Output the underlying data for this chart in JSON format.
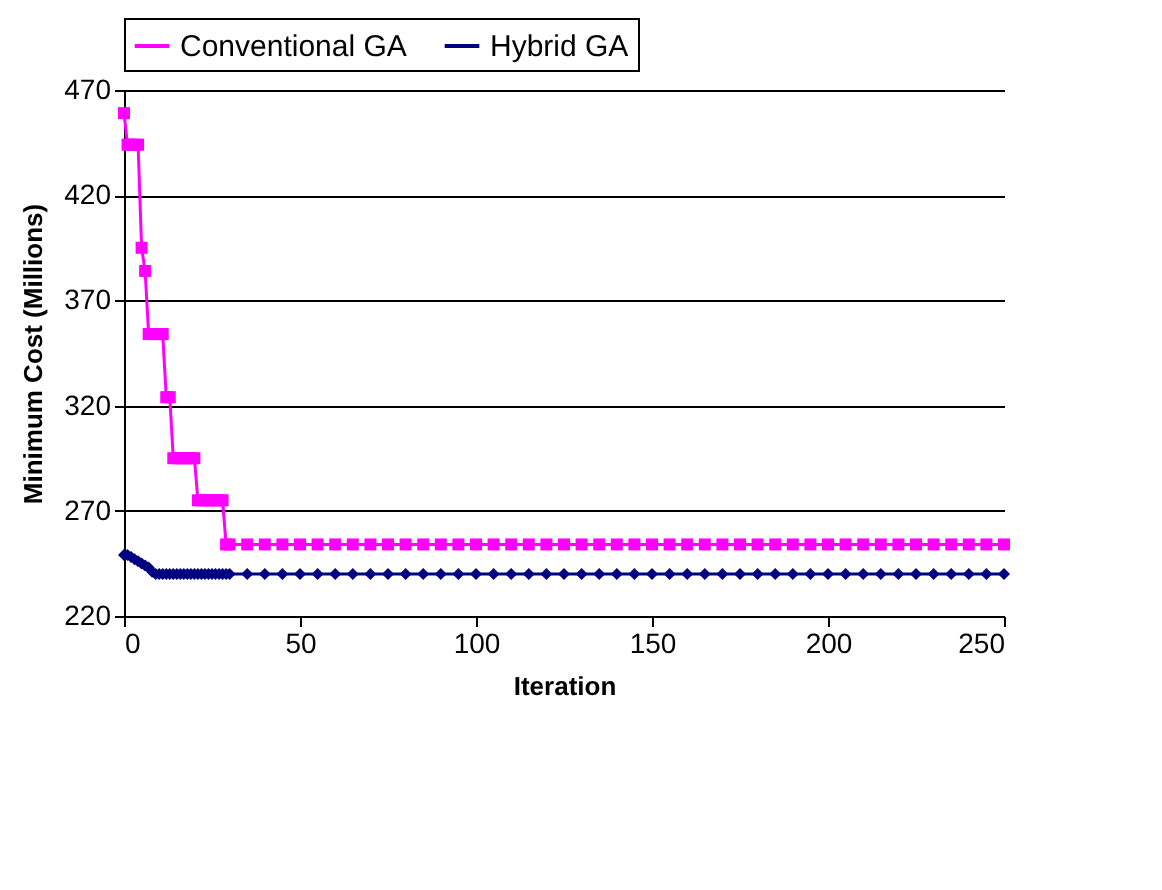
{
  "chart_data": {
    "type": "line",
    "xlabel": "Iteration",
    "ylabel": "Minimum Cost (Millions)",
    "x": [
      0,
      1,
      2,
      3,
      4,
      5,
      6,
      7,
      8,
      9,
      10,
      11,
      12,
      13,
      14,
      15,
      16,
      17,
      18,
      19,
      20,
      21,
      22,
      23,
      24,
      25,
      26,
      27,
      28,
      29,
      30,
      35,
      40,
      45,
      50,
      55,
      60,
      65,
      70,
      75,
      80,
      85,
      90,
      95,
      100,
      105,
      110,
      115,
      120,
      125,
      130,
      135,
      140,
      145,
      150,
      155,
      160,
      165,
      170,
      175,
      180,
      185,
      190,
      195,
      200,
      205,
      210,
      215,
      220,
      225,
      230,
      235,
      240,
      245,
      250
    ],
    "series": [
      {
        "name": "Conventional GA",
        "color": "#ff00ff",
        "marker": "square",
        "values": [
          459,
          444,
          444,
          444,
          444,
          395,
          384,
          354,
          354,
          354,
          354,
          354,
          324,
          324,
          295,
          295,
          295,
          295,
          295,
          295,
          295,
          275,
          275,
          275,
          275,
          275,
          275,
          275,
          275,
          254,
          254,
          254,
          254,
          254,
          254,
          254,
          254,
          254,
          254,
          254,
          254,
          254,
          254,
          254,
          254,
          254,
          254,
          254,
          254,
          254,
          254,
          254,
          254,
          254,
          254,
          254,
          254,
          254,
          254,
          254,
          254,
          254,
          254,
          254,
          254,
          254,
          254,
          254,
          254,
          254,
          254,
          254,
          254,
          254,
          254
        ]
      },
      {
        "name": "Hybrid GA",
        "color": "#000080",
        "marker": "diamond",
        "values": [
          249,
          249,
          248,
          247,
          246,
          245,
          244,
          243,
          241,
          240,
          240,
          240,
          240,
          240,
          240,
          240,
          240,
          240,
          240,
          240,
          240,
          240,
          240,
          240,
          240,
          240,
          240,
          240,
          240,
          240,
          240,
          240,
          240,
          240,
          240,
          240,
          240,
          240,
          240,
          240,
          240,
          240,
          240,
          240,
          240,
          240,
          240,
          240,
          240,
          240,
          240,
          240,
          240,
          240,
          240,
          240,
          240,
          240,
          240,
          240,
          240,
          240,
          240,
          240,
          240,
          240,
          240,
          240,
          240,
          240,
          240,
          240,
          240,
          240,
          240
        ]
      }
    ],
    "xlim": [
      0,
      250
    ],
    "xticks": [
      0,
      50,
      100,
      150,
      200,
      250
    ],
    "ylim": [
      220,
      470
    ],
    "yticks": [
      220,
      270,
      320,
      370,
      420,
      470
    ],
    "grid": "y",
    "legend": "top"
  }
}
